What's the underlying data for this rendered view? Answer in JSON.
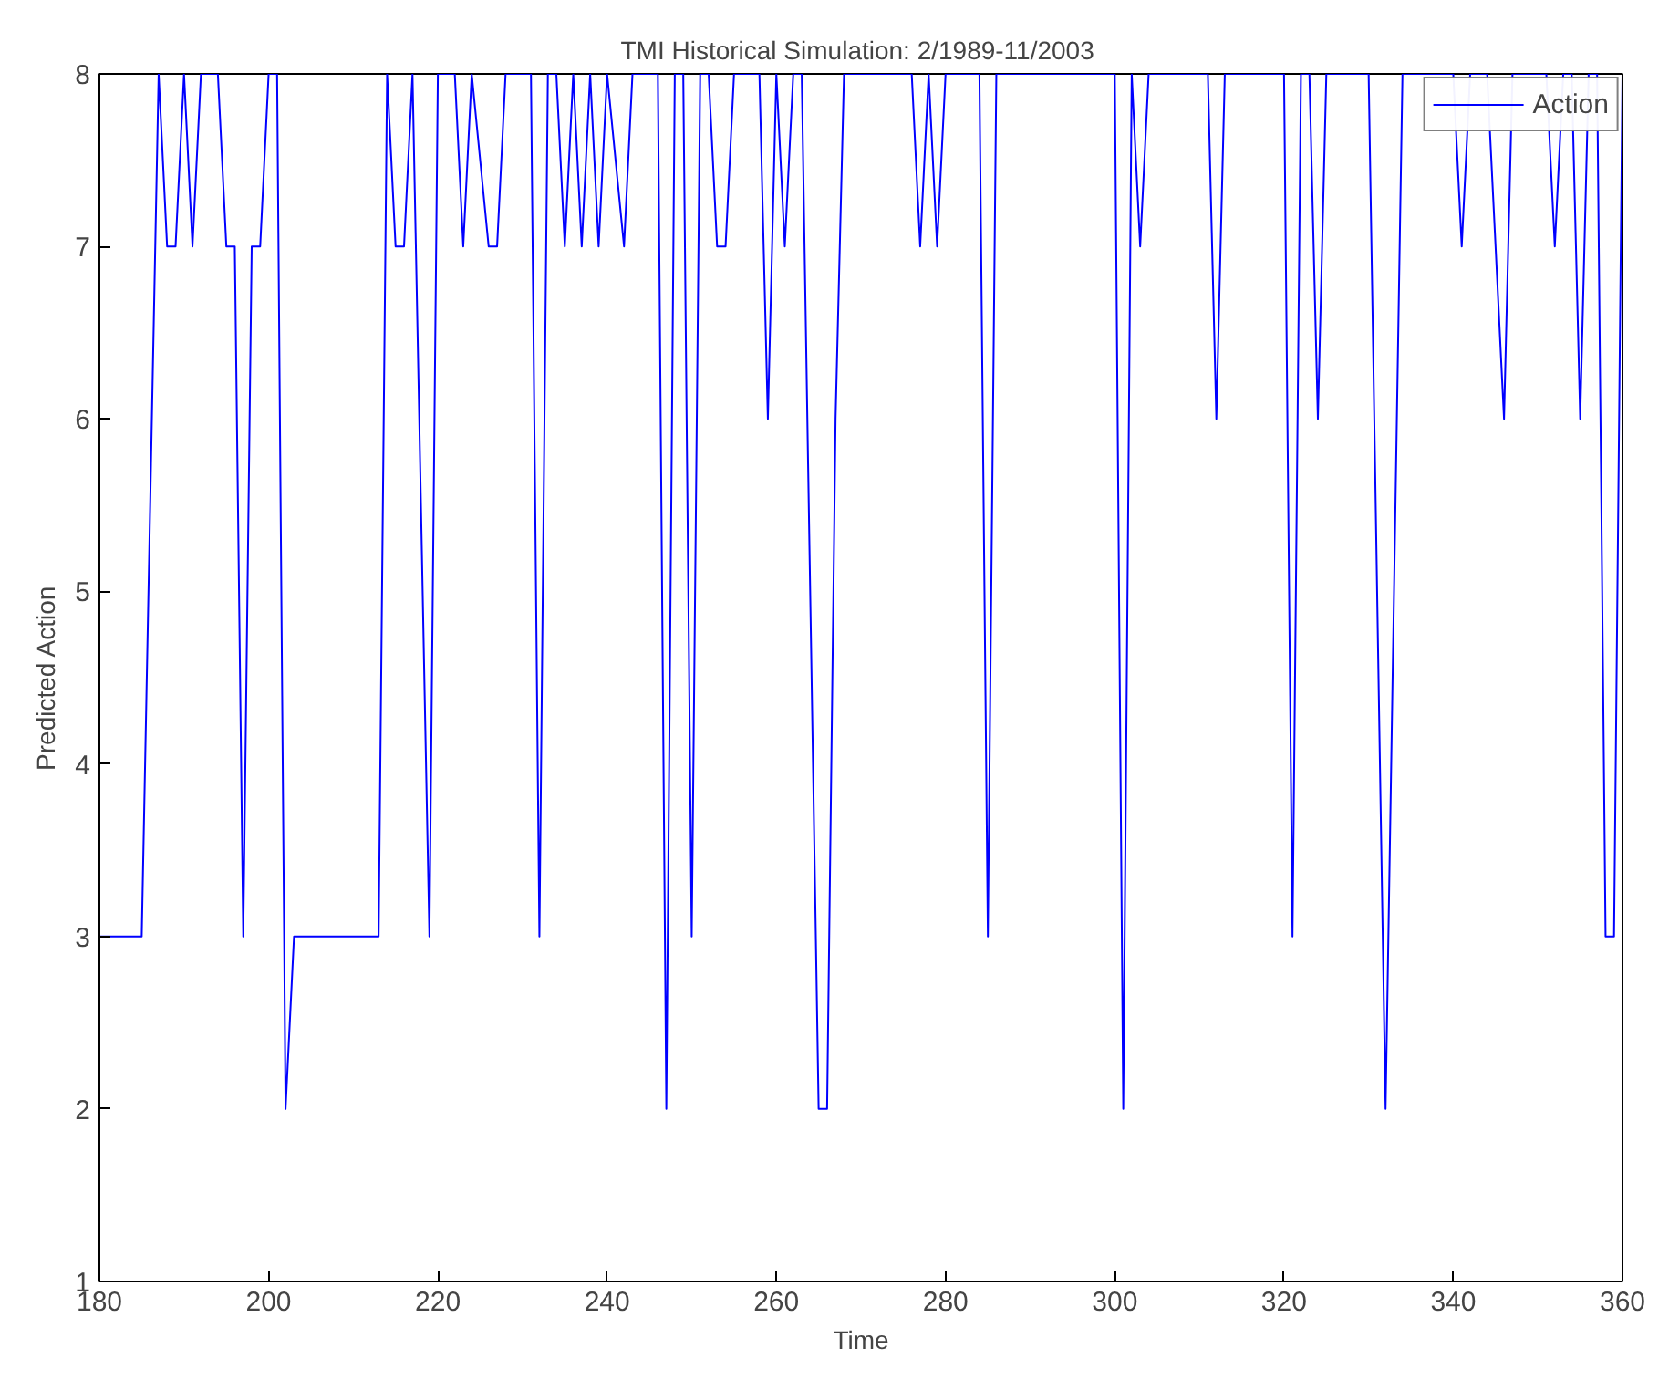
{
  "chart_data": {
    "type": "line",
    "title": "TMI Historical Simulation:  2/1989-11/2003",
    "xlabel": "Time",
    "ylabel": "Predicted Action",
    "x": [
      180,
      185,
      187,
      188,
      189,
      190,
      191,
      192,
      194,
      195,
      196,
      197,
      198,
      199,
      200,
      201,
      202,
      203,
      213,
      214,
      215,
      216,
      217,
      219,
      220,
      222,
      223,
      224,
      226,
      227,
      228,
      231,
      232,
      233,
      234,
      235,
      236,
      237,
      238,
      239,
      240,
      242,
      243,
      246,
      247,
      248,
      249,
      250,
      251,
      252,
      253,
      254,
      255,
      258,
      259,
      260,
      261,
      262,
      263,
      265,
      266,
      267,
      268,
      276,
      277,
      278,
      279,
      280,
      284,
      285,
      286,
      300,
      301,
      302,
      303,
      304,
      311,
      312,
      313,
      320,
      321,
      322,
      323,
      324,
      325,
      330,
      332,
      334,
      340,
      341,
      342,
      344,
      346,
      347,
      351,
      352,
      353,
      354,
      355,
      356,
      357,
      358,
      359,
      360
    ],
    "series": [
      {
        "name": "Action",
        "color": "#0000ff",
        "values": [
          3,
          3,
          8,
          7,
          7,
          8,
          7,
          8,
          8,
          7,
          7,
          3,
          7,
          7,
          8,
          8,
          2,
          3,
          3,
          8,
          7,
          7,
          8,
          3,
          8,
          8,
          7,
          8,
          7,
          7,
          8,
          8,
          3,
          8,
          8,
          7,
          8,
          7,
          8,
          7,
          8,
          7,
          8,
          8,
          2,
          8,
          8,
          3,
          8,
          8,
          7,
          7,
          8,
          8,
          6,
          8,
          7,
          8,
          8,
          2,
          2,
          6,
          8,
          8,
          7,
          8,
          7,
          8,
          8,
          3,
          8,
          8,
          2,
          8,
          7,
          8,
          8,
          6,
          8,
          8,
          3,
          8,
          8,
          6,
          8,
          8,
          2,
          8,
          8,
          7,
          8,
          8,
          6,
          8,
          8,
          7,
          8,
          8,
          6,
          8,
          8,
          3,
          3,
          8
        ]
      }
    ],
    "xlim": [
      180,
      360
    ],
    "ylim": [
      1,
      8
    ],
    "xticks": [
      180,
      200,
      220,
      240,
      260,
      280,
      300,
      320,
      340,
      360
    ],
    "yticks": [
      1,
      2,
      3,
      4,
      5,
      6,
      7,
      8
    ],
    "legend": "top right",
    "grid": false,
    "line_style": "solid"
  }
}
